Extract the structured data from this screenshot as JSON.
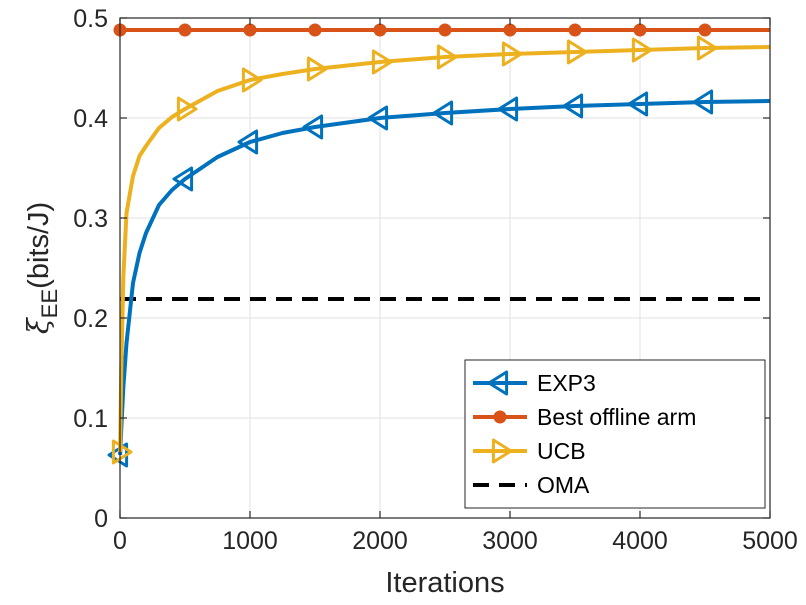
{
  "chart_data": {
    "type": "line",
    "title": "",
    "xlabel": "Iterations",
    "ylabel": {
      "symbol": "ξ",
      "subscript": "EE",
      "unit": "(bits/J)"
    },
    "xlim": [
      0,
      5000
    ],
    "ylim": [
      0,
      0.5
    ],
    "xticks": [
      0,
      1000,
      2000,
      3000,
      4000,
      5000
    ],
    "yticks": [
      0,
      0.1,
      0.2,
      0.3,
      0.4,
      0.5
    ],
    "xtick_labels": [
      "0",
      "1000",
      "2000",
      "3000",
      "4000",
      "5000"
    ],
    "ytick_labels": [
      "0",
      "0.1",
      "0.2",
      "0.3",
      "0.4",
      "0.5"
    ],
    "grid": true,
    "legend_position": "bottom-right",
    "series": [
      {
        "name": "EXP3",
        "color": "#0072BD",
        "marker": "triangle-left",
        "x": [
          1,
          10,
          25,
          50,
          100,
          150,
          200,
          300,
          400,
          500,
          750,
          1000,
          1250,
          1500,
          2000,
          2500,
          3000,
          3500,
          4000,
          4500,
          5000
        ],
        "y": [
          0.063,
          0.09,
          0.13,
          0.175,
          0.235,
          0.265,
          0.285,
          0.313,
          0.328,
          0.339,
          0.361,
          0.376,
          0.385,
          0.391,
          0.4,
          0.405,
          0.409,
          0.412,
          0.414,
          0.416,
          0.417
        ],
        "marker_x": [
          0,
          500,
          1000,
          1500,
          2000,
          2500,
          3000,
          3500,
          4000,
          4500
        ]
      },
      {
        "name": "Best offline arm",
        "color": "#D95319",
        "marker": "circle",
        "x": [
          0,
          5000
        ],
        "y": [
          0.488,
          0.488
        ],
        "marker_x": [
          0,
          500,
          1000,
          1500,
          2000,
          2500,
          3000,
          3500,
          4000,
          4500
        ]
      },
      {
        "name": "UCB",
        "color": "#EDB120",
        "marker": "triangle-right",
        "x": [
          1,
          10,
          25,
          50,
          100,
          150,
          200,
          300,
          400,
          500,
          750,
          1000,
          1250,
          1500,
          2000,
          2500,
          3000,
          3500,
          4000,
          4500,
          5000
        ],
        "y": [
          0.066,
          0.15,
          0.24,
          0.305,
          0.342,
          0.362,
          0.372,
          0.39,
          0.401,
          0.409,
          0.427,
          0.438,
          0.444,
          0.449,
          0.456,
          0.461,
          0.464,
          0.466,
          0.468,
          0.47,
          0.471
        ],
        "marker_x": [
          0,
          500,
          1000,
          1500,
          2000,
          2500,
          3000,
          3500,
          4000,
          4500
        ]
      },
      {
        "name": "OMA",
        "color": "#000000",
        "marker": "none",
        "dashed": true,
        "x": [
          0,
          5000
        ],
        "y": [
          0.219,
          0.219
        ]
      }
    ]
  }
}
